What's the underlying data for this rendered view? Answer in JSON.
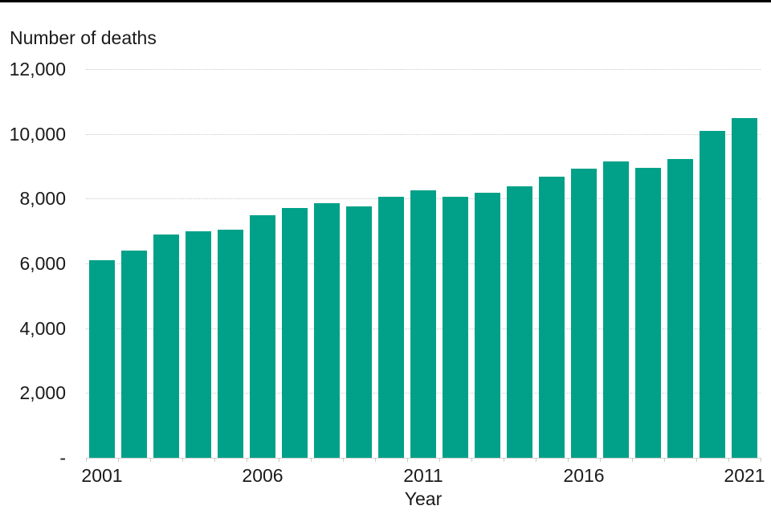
{
  "chart_data": {
    "type": "bar",
    "title": "Number of deaths",
    "xlabel": "Year",
    "ylabel": "Number of deaths",
    "categories": [
      "2001",
      "2002",
      "2003",
      "2004",
      "2005",
      "2006",
      "2007",
      "2008",
      "2009",
      "2010",
      "2011",
      "2012",
      "2013",
      "2014",
      "2015",
      "2016",
      "2017",
      "2018",
      "2019",
      "2020",
      "2021"
    ],
    "values": [
      6100,
      6400,
      6900,
      7000,
      7050,
      7500,
      7700,
      7850,
      7750,
      8050,
      8250,
      8070,
      8170,
      8380,
      8680,
      8930,
      9150,
      8950,
      9230,
      10100,
      10500
    ],
    "ylim": [
      0,
      12000
    ],
    "ytick_values": [
      12000,
      10000,
      8000,
      6000,
      4000,
      2000,
      0
    ],
    "ytick_labels": [
      "12,000",
      "10,000",
      "8,000",
      "6,000",
      "4,000",
      "2,000",
      "-"
    ],
    "xtick_labels": [
      "2001",
      "2006",
      "2011",
      "2016",
      "2021"
    ],
    "grid": "horizontal-dotted",
    "legend": "none",
    "bar_color": "#00A188",
    "grid_color": "#c8c8c8",
    "axis_color": "#cfcfcf",
    "text_color": "#1a1a1a",
    "top_border_color": "#000000"
  }
}
